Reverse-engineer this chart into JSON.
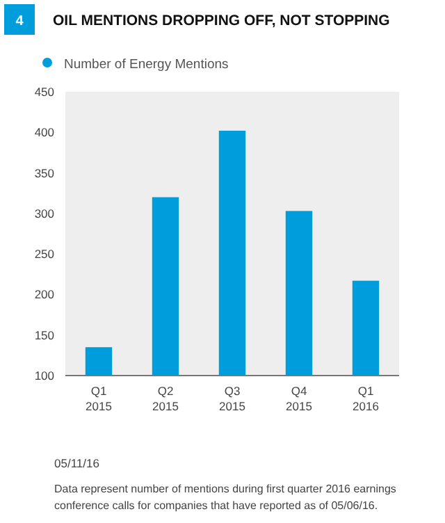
{
  "chart_data": {
    "type": "bar",
    "title": "OIL MENTIONS DROPPING OFF, NOT STOPPING",
    "categories": [
      "Q1 2015",
      "Q2 2015",
      "Q3 2015",
      "Q4 2015",
      "Q1 2016"
    ],
    "series": [
      {
        "name": "Number of Energy Mentions",
        "color": "#009ddc",
        "values": [
          135,
          320,
          402,
          303,
          217
        ]
      }
    ],
    "ylim": [
      100,
      450
    ],
    "yticks": [
      100,
      150,
      200,
      250,
      300,
      350,
      400,
      450
    ],
    "legend": "top left",
    "annotations": [
      "4",
      "05/11/16",
      "Data represent number of mentions during first quarter 2016 earnings conference calls for companies that have reported as of 05/06/16."
    ]
  }
}
